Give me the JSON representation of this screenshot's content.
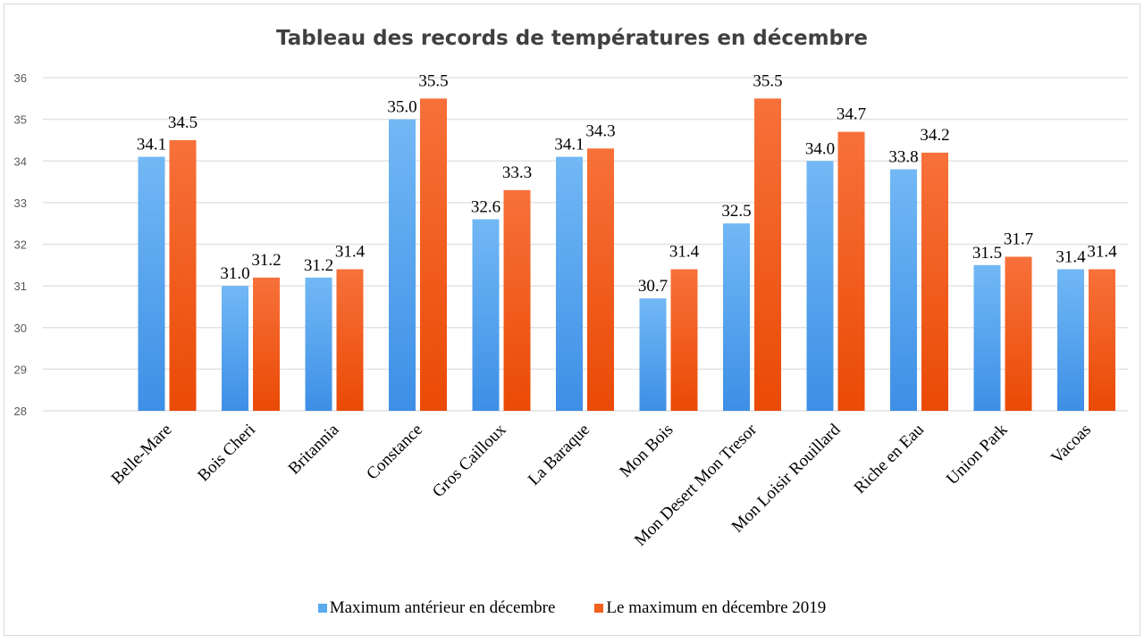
{
  "chart_data": {
    "type": "bar",
    "title": "Tableau  des records de températures  en décembre",
    "categories": [
      "Belle-Mare",
      "Bois Cheri",
      "Britannia",
      "Constance",
      "Gros Cailloux",
      "La Baraque",
      "Mon Bois",
      "Mon Desert Mon Tresor",
      "Mon Loisir Rouillard",
      "Riche en Eau",
      "Union Park",
      "Vacoas"
    ],
    "series": [
      {
        "name": "Maximum antérieur en décembre",
        "color": "#5aaaf0",
        "values": [
          34.1,
          31.0,
          31.2,
          35.0,
          32.6,
          34.1,
          30.7,
          32.5,
          34.0,
          33.8,
          31.5,
          31.4
        ]
      },
      {
        "name": "Le maximum en décembre 2019",
        "color": "#f2611e",
        "values": [
          34.5,
          31.2,
          31.4,
          35.5,
          33.3,
          34.3,
          31.4,
          35.5,
          34.7,
          34.2,
          31.7,
          31.4
        ]
      }
    ],
    "ylim": [
      28,
      36
    ],
    "yticks": [
      28,
      29,
      30,
      31,
      32,
      33,
      34,
      35,
      36
    ],
    "grid": true,
    "legend": "bottom",
    "xlabel": "",
    "ylabel": ""
  }
}
